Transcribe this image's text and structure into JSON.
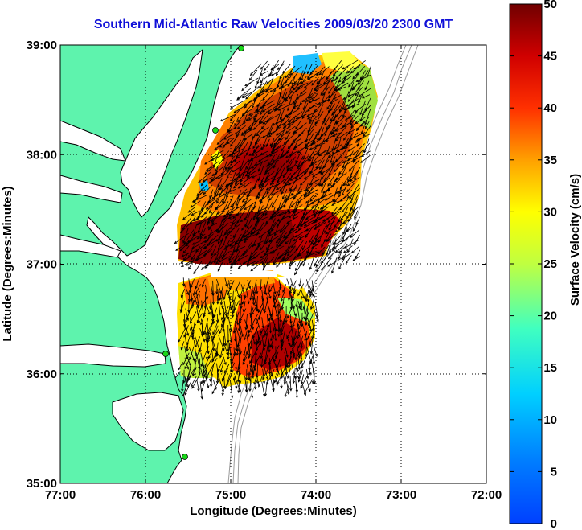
{
  "title": "Southern Mid-Atlantic Raw Velocities 2009/03/20 2300 GMT",
  "map": {
    "xlabel": "Longitude (Degrees:Minutes)",
    "ylabel": "Latitude (Degrees:Minutes)",
    "lon_range": [
      -77,
      -72
    ],
    "lat_range": [
      35,
      39
    ],
    "lon_ticks": [
      "77:00",
      "76:00",
      "75:00",
      "74:00",
      "73:00",
      "72:00"
    ],
    "lat_ticks": [
      "39:00",
      "38:00",
      "37:00",
      "36:00",
      "35:00"
    ],
    "grid": true,
    "land_color": "#5ef3ad",
    "water_color": "#ffffff",
    "station_color": "#19d619"
  },
  "colorbar": {
    "label": "Surface Velocity (cm/s)",
    "range": [
      0,
      50
    ],
    "ticks": [
      "50",
      "45",
      "40",
      "35",
      "30",
      "25",
      "20",
      "15",
      "10",
      "5",
      "0"
    ],
    "colormap": "jet"
  }
}
